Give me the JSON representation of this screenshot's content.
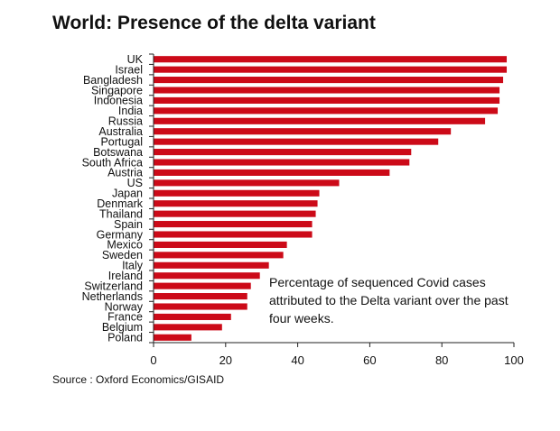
{
  "chart_data": {
    "type": "bar",
    "orientation": "horizontal",
    "title": "World: Presence of the delta variant",
    "categories": [
      "UK",
      "Israel",
      "Bangladesh",
      "Singapore",
      "Indonesia",
      "India",
      "Russia",
      "Australia",
      "Portugal",
      "Botswana",
      "South Africa",
      "Austria",
      "US",
      "Japan",
      "Denmark",
      "Thailand",
      "Spain",
      "Germany",
      "Mexico",
      "Sweden",
      "Italy",
      "Ireland",
      "Switzerland",
      "Netherlands",
      "Norway",
      "France",
      "Belgium",
      "Poland"
    ],
    "values": [
      98,
      98,
      97,
      96,
      96,
      95.5,
      92,
      82.5,
      79,
      71.5,
      71,
      65.5,
      51.5,
      46,
      45.5,
      45,
      44,
      44,
      37,
      36,
      32,
      29.5,
      27,
      26,
      26,
      21.5,
      19,
      10.5
    ],
    "xlim": [
      0,
      100
    ],
    "xticks": [
      0,
      20,
      40,
      60,
      80,
      100
    ],
    "bar_color": "#cc0a18",
    "annotation": "Percentage of sequenced Covid cases attributed to the Delta variant over the past four weeks.",
    "source": "Source : Oxford Economics/GISAID"
  }
}
